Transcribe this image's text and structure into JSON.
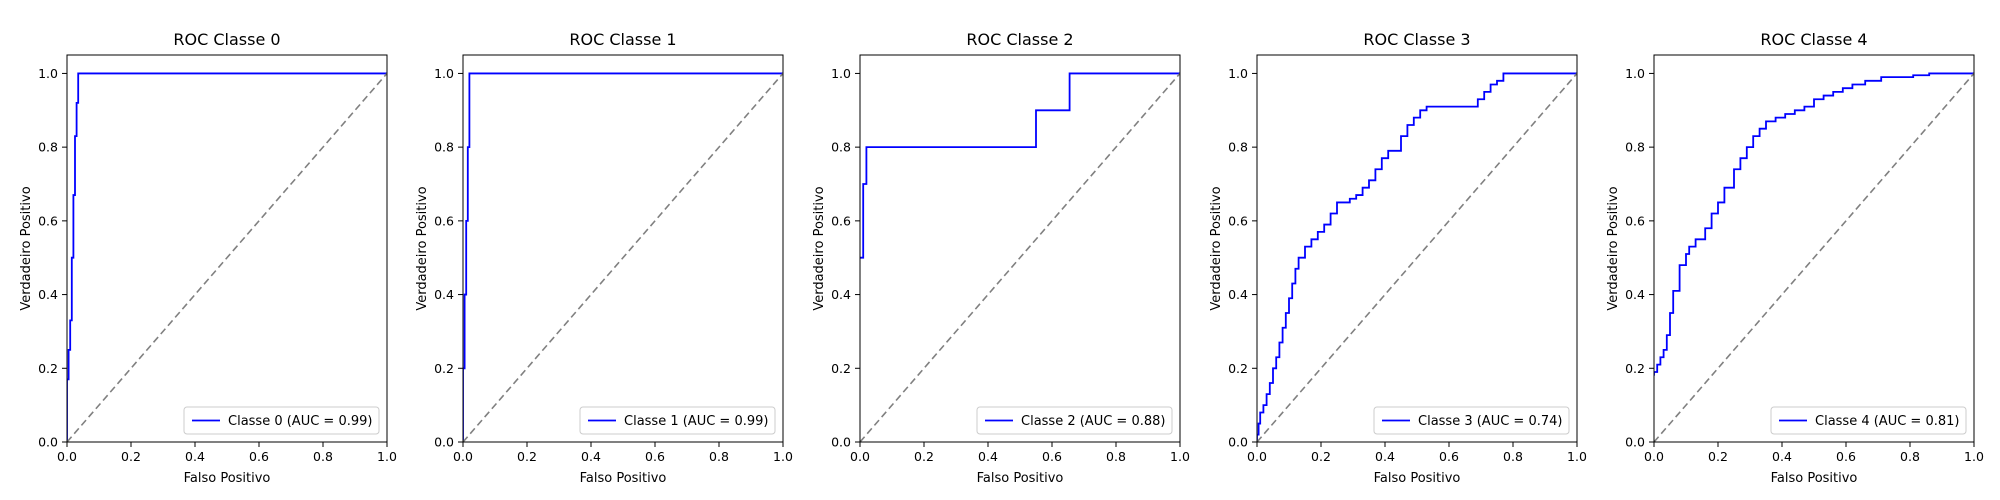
{
  "chart_data": [
    {
      "type": "line",
      "title": "ROC Classe 0",
      "xlabel": "Falso Positivo",
      "ylabel": "Verdadeiro Positivo",
      "xlim": [
        0,
        1
      ],
      "ylim": [
        0,
        1.05
      ],
      "xticks": [
        "0.0",
        "0.2",
        "0.4",
        "0.6",
        "0.8",
        "1.0"
      ],
      "yticks": [
        "0.0",
        "0.2",
        "0.4",
        "0.6",
        "0.8",
        "1.0"
      ],
      "legend_position": "lower-right",
      "grid": false,
      "series": [
        {
          "name": "Classe 0 (AUC = 0.99)",
          "color": "#0000ff",
          "x": [
            0,
            0,
            0.005,
            0.005,
            0.01,
            0.01,
            0.015,
            0.015,
            0.02,
            0.02,
            0.025,
            0.025,
            0.03,
            0.03,
            0.035,
            0.035,
            1
          ],
          "y": [
            0,
            0.17,
            0.17,
            0.25,
            0.25,
            0.33,
            0.33,
            0.5,
            0.5,
            0.67,
            0.67,
            0.83,
            0.83,
            0.92,
            0.92,
            1.0,
            1.0
          ]
        },
        {
          "name": "",
          "color": "#808080",
          "dashed": true,
          "x": [
            0,
            1
          ],
          "y": [
            0,
            1
          ]
        }
      ]
    },
    {
      "type": "line",
      "title": "ROC Classe 1",
      "xlabel": "Falso Positivo",
      "ylabel": "Verdadeiro Positivo",
      "xlim": [
        0,
        1
      ],
      "ylim": [
        0,
        1.05
      ],
      "xticks": [
        "0.0",
        "0.2",
        "0.4",
        "0.6",
        "0.8",
        "1.0"
      ],
      "yticks": [
        "0.0",
        "0.2",
        "0.4",
        "0.6",
        "0.8",
        "1.0"
      ],
      "legend_position": "lower-right",
      "grid": false,
      "series": [
        {
          "name": "Classe 1 (AUC = 0.99)",
          "color": "#0000ff",
          "x": [
            0,
            0,
            0.005,
            0.005,
            0.01,
            0.01,
            0.015,
            0.015,
            0.02,
            0.02,
            1
          ],
          "y": [
            0,
            0.2,
            0.2,
            0.4,
            0.4,
            0.6,
            0.6,
            0.8,
            0.8,
            1.0,
            1.0
          ]
        },
        {
          "name": "",
          "color": "#808080",
          "dashed": true,
          "x": [
            0,
            1
          ],
          "y": [
            0,
            1
          ]
        }
      ]
    },
    {
      "type": "line",
      "title": "ROC Classe 2",
      "xlabel": "Falso Positivo",
      "ylabel": "Verdadeiro Positivo",
      "xlim": [
        0,
        1
      ],
      "ylim": [
        0,
        1.05
      ],
      "xticks": [
        "0.0",
        "0.2",
        "0.4",
        "0.6",
        "0.8",
        "1.0"
      ],
      "yticks": [
        "0.0",
        "0.2",
        "0.4",
        "0.6",
        "0.8",
        "1.0"
      ],
      "legend_position": "lower-right",
      "grid": false,
      "series": [
        {
          "name": "Classe 2 (AUC = 0.88)",
          "color": "#0000ff",
          "x": [
            0,
            0,
            0.01,
            0.01,
            0.02,
            0.02,
            0.55,
            0.55,
            0.655,
            0.655,
            1.0
          ],
          "y": [
            0.5,
            0.5,
            0.5,
            0.7,
            0.7,
            0.8,
            0.8,
            0.9,
            0.9,
            1.0,
            1.0
          ]
        },
        {
          "name": "",
          "color": "#808080",
          "dashed": true,
          "x": [
            0,
            1
          ],
          "y": [
            0,
            1
          ]
        }
      ]
    },
    {
      "type": "line",
      "title": "ROC Classe 3",
      "xlabel": "Falso Positivo",
      "ylabel": "Verdadeiro Positivo",
      "xlim": [
        0,
        1
      ],
      "ylim": [
        0,
        1.05
      ],
      "xticks": [
        "0.0",
        "0.2",
        "0.4",
        "0.6",
        "0.8",
        "1.0"
      ],
      "yticks": [
        "0.0",
        "0.2",
        "0.4",
        "0.6",
        "0.8",
        "1.0"
      ],
      "legend_position": "lower-right",
      "grid": false,
      "series": [
        {
          "name": "Classe 3 (AUC = 0.74)",
          "color": "#0000ff",
          "x": [
            0,
            0,
            0.005,
            0.005,
            0.01,
            0.01,
            0.02,
            0.02,
            0.03,
            0.03,
            0.04,
            0.04,
            0.05,
            0.05,
            0.06,
            0.06,
            0.07,
            0.07,
            0.08,
            0.08,
            0.09,
            0.09,
            0.1,
            0.1,
            0.11,
            0.11,
            0.12,
            0.12,
            0.13,
            0.13,
            0.15,
            0.15,
            0.17,
            0.17,
            0.19,
            0.19,
            0.21,
            0.21,
            0.23,
            0.23,
            0.25,
            0.25,
            0.29,
            0.29,
            0.31,
            0.31,
            0.33,
            0.33,
            0.35,
            0.35,
            0.37,
            0.37,
            0.39,
            0.39,
            0.41,
            0.41,
            0.45,
            0.45,
            0.47,
            0.47,
            0.49,
            0.49,
            0.51,
            0.51,
            0.53,
            0.53,
            0.69,
            0.69,
            0.71,
            0.71,
            0.73,
            0.73,
            0.75,
            0.75,
            0.77,
            0.77,
            0.81,
            0.81,
            1.0
          ],
          "y": [
            0,
            0.02,
            0.02,
            0.05,
            0.05,
            0.08,
            0.08,
            0.1,
            0.1,
            0.13,
            0.13,
            0.16,
            0.16,
            0.2,
            0.2,
            0.23,
            0.23,
            0.27,
            0.27,
            0.31,
            0.31,
            0.35,
            0.35,
            0.39,
            0.39,
            0.43,
            0.43,
            0.47,
            0.47,
            0.5,
            0.5,
            0.53,
            0.53,
            0.55,
            0.55,
            0.57,
            0.57,
            0.59,
            0.59,
            0.62,
            0.62,
            0.65,
            0.65,
            0.66,
            0.66,
            0.67,
            0.67,
            0.69,
            0.69,
            0.71,
            0.71,
            0.74,
            0.74,
            0.77,
            0.77,
            0.79,
            0.79,
            0.83,
            0.83,
            0.86,
            0.86,
            0.88,
            0.88,
            0.9,
            0.9,
            0.91,
            0.91,
            0.93,
            0.93,
            0.95,
            0.95,
            0.97,
            0.97,
            0.98,
            0.98,
            1.0,
            1.0,
            1.0,
            1.0
          ]
        },
        {
          "name": "",
          "color": "#808080",
          "dashed": true,
          "x": [
            0,
            1
          ],
          "y": [
            0,
            1
          ]
        }
      ]
    },
    {
      "type": "line",
      "title": "ROC Classe 4",
      "xlabel": "Falso Positivo",
      "ylabel": "Verdadeiro Positivo",
      "xlim": [
        0,
        1
      ],
      "ylim": [
        0,
        1.05
      ],
      "xticks": [
        "0.0",
        "0.2",
        "0.4",
        "0.6",
        "0.8",
        "1.0"
      ],
      "yticks": [
        "0.0",
        "0.2",
        "0.4",
        "0.6",
        "0.8",
        "1.0"
      ],
      "legend_position": "lower-right",
      "grid": false,
      "series": [
        {
          "name": "Classe 4 (AUC = 0.81)",
          "color": "#0000ff",
          "x": [
            0,
            0,
            0.01,
            0.01,
            0.02,
            0.02,
            0.03,
            0.03,
            0.04,
            0.04,
            0.05,
            0.05,
            0.06,
            0.06,
            0.08,
            0.08,
            0.1,
            0.1,
            0.11,
            0.11,
            0.13,
            0.13,
            0.16,
            0.16,
            0.18,
            0.18,
            0.2,
            0.2,
            0.22,
            0.22,
            0.25,
            0.25,
            0.27,
            0.27,
            0.29,
            0.29,
            0.31,
            0.31,
            0.33,
            0.33,
            0.35,
            0.35,
            0.38,
            0.38,
            0.41,
            0.41,
            0.44,
            0.44,
            0.47,
            0.47,
            0.5,
            0.5,
            0.53,
            0.53,
            0.56,
            0.56,
            0.59,
            0.59,
            0.62,
            0.62,
            0.66,
            0.66,
            0.71,
            0.71,
            0.76,
            0.76,
            0.81,
            0.81,
            0.86,
            0.86,
            0.91,
            0.91,
            1.0
          ],
          "y": [
            0.18,
            0.19,
            0.19,
            0.21,
            0.21,
            0.23,
            0.23,
            0.25,
            0.25,
            0.29,
            0.29,
            0.35,
            0.35,
            0.41,
            0.41,
            0.48,
            0.48,
            0.51,
            0.51,
            0.53,
            0.53,
            0.55,
            0.55,
            0.58,
            0.58,
            0.62,
            0.62,
            0.65,
            0.65,
            0.69,
            0.69,
            0.74,
            0.74,
            0.77,
            0.77,
            0.8,
            0.8,
            0.83,
            0.83,
            0.85,
            0.85,
            0.87,
            0.87,
            0.88,
            0.88,
            0.89,
            0.89,
            0.9,
            0.9,
            0.91,
            0.91,
            0.93,
            0.93,
            0.94,
            0.94,
            0.95,
            0.95,
            0.96,
            0.96,
            0.97,
            0.97,
            0.98,
            0.98,
            0.99,
            0.99,
            0.99,
            0.99,
            0.995,
            0.995,
            1.0,
            1.0,
            1.0,
            1.0
          ]
        },
        {
          "name": "",
          "color": "#808080",
          "dashed": true,
          "x": [
            0,
            1
          ],
          "y": [
            0,
            1
          ]
        }
      ]
    }
  ]
}
